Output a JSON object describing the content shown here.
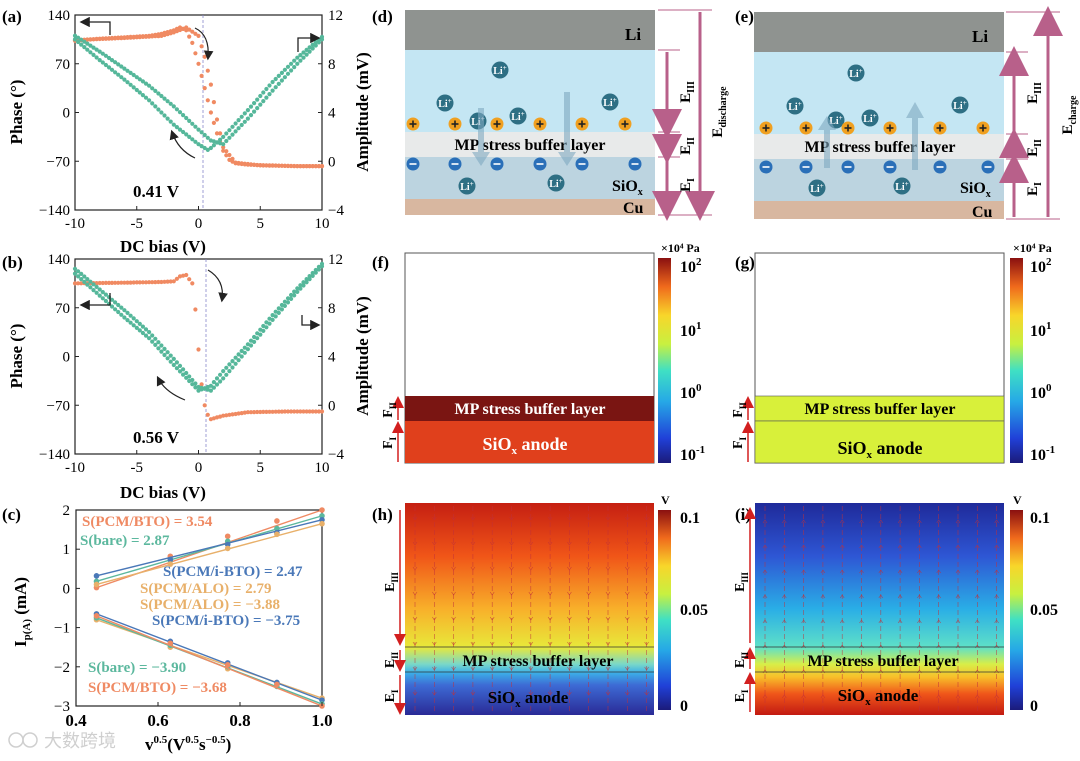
{
  "panels": {
    "a": {
      "label": "(a)",
      "annotation": "0.41 V"
    },
    "b": {
      "label": "(b)",
      "annotation": "0.56 V"
    },
    "c": {
      "label": "(c)"
    },
    "d": {
      "label": "(d)"
    },
    "e": {
      "label": "(e)"
    },
    "f": {
      "label": "(f)"
    },
    "g": {
      "label": "(g)"
    },
    "h": {
      "label": "(h)"
    },
    "i": {
      "label": "(i)"
    }
  },
  "colors": {
    "phase": "#f08a62",
    "amplitude": "#55b79a",
    "bare": "#5cb89e",
    "pcm_bto": "#ef8a63",
    "pcm_ibto": "#4a78b8",
    "pcm_alo": "#e8b06a",
    "li_layer": "#8f9390",
    "electrolyte": "#c4e6f3",
    "buffer": "#e8eaea",
    "siox": "#bcd4e0",
    "cu": "#d8b7a0",
    "bracket": "#b8608a",
    "arrow_red": "#d21f1f"
  },
  "strings": {
    "dc_bias": "DC bias (V)",
    "phase": "Phase (°)",
    "amplitude": "Amplitude (mV)",
    "ip_base": "I",
    "ip_sub": "p(A)",
    "ip_unit": " (mA)",
    "li": "Li",
    "li_ion": "Li",
    "li_ion_sup": "+",
    "mp_buffer": "MP stress buffer layer",
    "siox_base": "SiO",
    "siox_sub": "x",
    "cu": "Cu",
    "anode_suffix": " anode",
    "unit_pa": "×10⁴ Pa",
    "unit_v": "V",
    "e": "E",
    "f": "F",
    "sub_I": "I",
    "sub_II": "II",
    "sub_III": "III",
    "sub_discharge": "discharge",
    "sub_charge": "charge",
    "watermark": "大数跨境"
  },
  "chart_data": [
    {
      "id": "a",
      "type": "line",
      "xlabel": "DC bias (V)",
      "ylabel": "Phase (°)",
      "y2label": "Amplitude (mV)",
      "xlim": [
        -10,
        10
      ],
      "ylim": [
        -140,
        140
      ],
      "y2lim": [
        -4,
        12
      ],
      "xticks": [
        -10,
        -5,
        0,
        5,
        10
      ],
      "yticks": [
        -140,
        -70,
        0,
        70,
        140
      ],
      "y2ticks": [
        -4,
        0,
        4,
        8,
        12
      ],
      "series": [
        {
          "axis": "left",
          "x": [
            -10,
            -8,
            -6,
            -4,
            -3,
            -2,
            -1.5,
            -1,
            -0.5,
            0,
            0.5,
            1,
            1.5,
            2,
            2.5,
            3,
            4,
            6,
            8,
            10
          ],
          "y": [
            103,
            106,
            108,
            110,
            113,
            118,
            122,
            118,
            100,
            70,
            35,
            0,
            -30,
            -55,
            -68,
            -73,
            -75,
            -76,
            -77,
            -77
          ]
        },
        {
          "axis": "left",
          "x": [
            -10,
            -6,
            -3,
            -2,
            -1,
            0,
            0.5,
            1,
            1.5,
            2,
            3,
            5,
            8,
            10
          ],
          "y": [
            104,
            107,
            110,
            115,
            122,
            110,
            80,
            40,
            -10,
            -50,
            -72,
            -76,
            -77,
            -77
          ]
        },
        {
          "axis": "right",
          "x": [
            -10,
            -8,
            -6,
            -4,
            -2,
            0,
            1,
            2,
            4,
            6,
            8,
            10
          ],
          "y": [
            10.3,
            9,
            7.6,
            6.2,
            4.5,
            2.6,
            1.7,
            1.4,
            3.5,
            5.8,
            8,
            10
          ]
        },
        {
          "axis": "right",
          "x": [
            -10,
            -8,
            -6,
            -4,
            -2,
            0,
            0.8,
            2,
            4,
            6,
            8,
            10
          ],
          "y": [
            10,
            8.3,
            6.7,
            5,
            3,
            1.4,
            0.9,
            2,
            4.2,
            6.5,
            8.5,
            10.2
          ]
        }
      ]
    },
    {
      "id": "b",
      "type": "line",
      "xlabel": "DC bias (V)",
      "ylabel": "Phase (°)",
      "y2label": "Amplitude (mV)",
      "xlim": [
        -10,
        10
      ],
      "ylim": [
        -140,
        140
      ],
      "y2lim": [
        -4,
        12
      ],
      "xticks": [
        -10,
        -5,
        0,
        5,
        10
      ],
      "yticks": [
        -140,
        -70,
        0,
        70,
        140
      ],
      "y2ticks": [
        -4,
        0,
        4,
        8,
        12
      ],
      "series": [
        {
          "axis": "left",
          "x": [
            -10,
            -6,
            -3,
            -2,
            -1.5,
            -1,
            -0.5,
            -0.2,
            0,
            0.3,
            0.6,
            1,
            2,
            4,
            7,
            10
          ],
          "y": [
            105,
            106,
            107,
            108,
            115,
            117,
            105,
            60,
            10,
            -50,
            -80,
            -90,
            -85,
            -80,
            -79,
            -79
          ]
        },
        {
          "axis": "right",
          "x": [
            -10,
            -8,
            -6,
            -4,
            -2,
            0,
            1,
            2,
            4,
            6,
            8,
            10
          ],
          "y": [
            11.2,
            9.5,
            7.8,
            6,
            3.8,
            1.5,
            1.2,
            2.2,
            4.6,
            7,
            9.3,
            11.4
          ]
        },
        {
          "axis": "right",
          "x": [
            -10,
            -8,
            -6,
            -4,
            -2,
            0,
            1,
            2,
            4,
            6,
            8,
            10
          ],
          "y": [
            10.8,
            9,
            7.2,
            5.5,
            3.3,
            1.2,
            1.6,
            2.8,
            5,
            7.4,
            9.6,
            11.6
          ]
        }
      ]
    },
    {
      "id": "c",
      "type": "scatter",
      "xlabel_base": "v",
      "xlabel_sup1": "0.5",
      "xlabel_mid": "(V",
      "xlabel_sup2": "0.5",
      "xlabel_mid2": "s",
      "xlabel_sup3": "−0.5",
      "xlabel_end": ")",
      "ylabel": "Ip(A) (mA)",
      "xlim": [
        0.4,
        1.0
      ],
      "ylim": [
        -3,
        2
      ],
      "xticks": [
        0.4,
        0.6,
        0.8,
        1.0
      ],
      "xticklabels": [
        "0.4",
        "0.6",
        "0.8",
        "1.0"
      ],
      "yticks": [
        -3,
        -2,
        -1,
        0,
        1,
        2
      ],
      "x": [
        0.45,
        0.63,
        0.77,
        0.89,
        1.0
      ],
      "series": [
        {
          "name": "S(PCM/BTO) = 3.54",
          "color": "pcm_bto",
          "values": [
            0.02,
            0.82,
            1.33,
            1.72,
            2.0
          ]
        },
        {
          "name": "S(bare) = 2.87",
          "color": "bare",
          "values": [
            0.18,
            0.72,
            1.2,
            1.53,
            1.85
          ]
        },
        {
          "name": "S(PCM/i-BTO) = 2.47",
          "color": "pcm_ibto",
          "values": [
            0.32,
            0.74,
            1.12,
            1.42,
            1.75
          ]
        },
        {
          "name": "S(PCM/ALO) = 2.79",
          "color": "pcm_alo",
          "values": [
            0.1,
            0.62,
            1.02,
            1.38,
            1.65
          ]
        },
        {
          "name": "S(PCM/ALO) = −3.88",
          "color": "pcm_alo",
          "values": [
            -0.8,
            -1.5,
            -2.05,
            -2.45,
            -2.8
          ]
        },
        {
          "name": "S(PCM/i-BTO) = −3.75",
          "color": "pcm_ibto",
          "values": [
            -0.65,
            -1.35,
            -1.9,
            -2.4,
            -2.85
          ]
        },
        {
          "name": "S(bare) = −3.90",
          "color": "bare",
          "values": [
            -0.75,
            -1.45,
            -2.0,
            -2.5,
            -2.95
          ]
        },
        {
          "name": "S(PCM/BTO) = −3.68",
          "color": "pcm_bto",
          "values": [
            -0.7,
            -1.4,
            -1.95,
            -2.45,
            -3.0
          ]
        }
      ]
    }
  ],
  "colorbars": {
    "pa": {
      "ticks": [
        "10",
        "10",
        "10",
        "10"
      ],
      "sups": [
        "2",
        "1",
        "0",
        "-1"
      ]
    },
    "v": {
      "ticks": [
        "0.1",
        "0.05",
        "0"
      ]
    }
  }
}
